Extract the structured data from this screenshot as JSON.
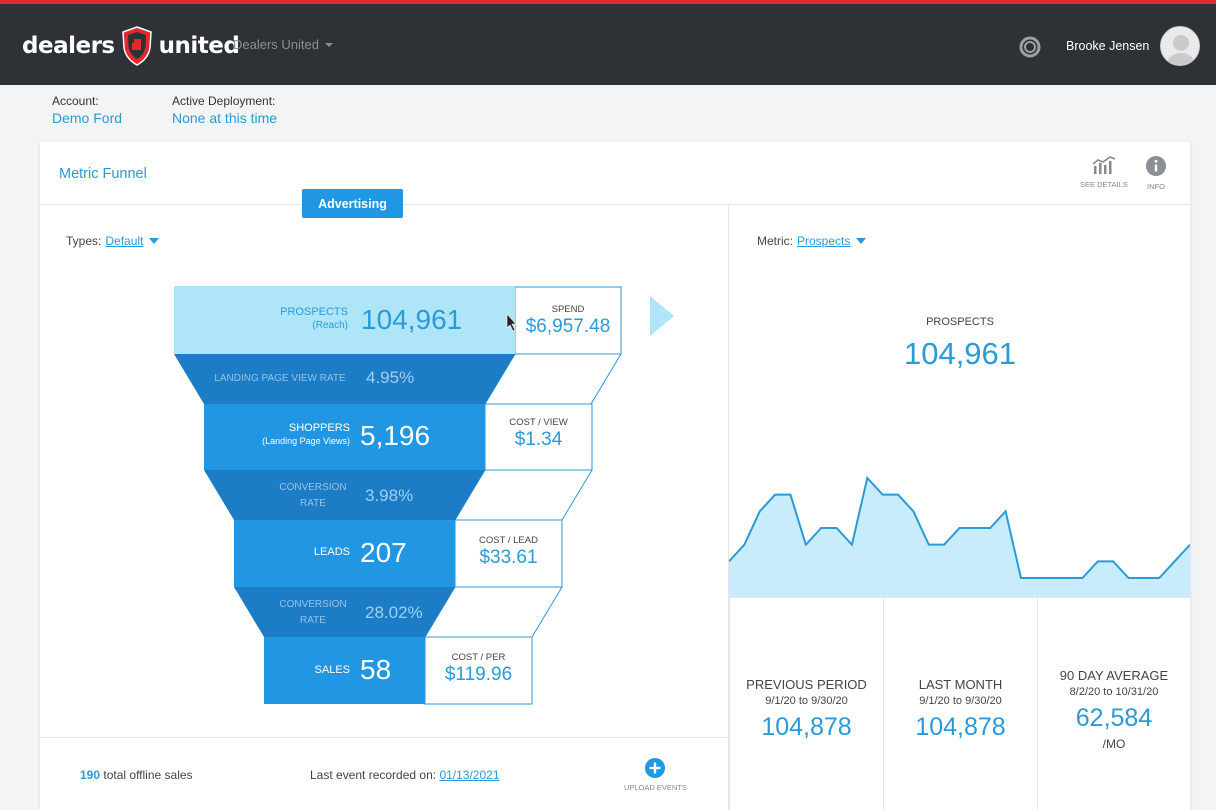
{
  "brand": {
    "word_left": "dealers",
    "word_right": "united",
    "primary_color": "#e02a2f"
  },
  "topbar": {
    "org_select": "Dealers United",
    "user_name": "Brooke Jensen",
    "icons": [
      "settings-icon",
      "avatar"
    ]
  },
  "account": {
    "account_label": "Account:",
    "account_value": "Demo Ford",
    "deployment_label": "Active Deployment:",
    "deployment_value": "None at this time"
  },
  "card": {
    "title": "Metric Funnel",
    "tools": {
      "see_details": "SEE DETAILS",
      "info": "INFO"
    },
    "tab": "Advertising"
  },
  "funnel": {
    "types_label": "Types:",
    "types_value": "Default",
    "stages": [
      {
        "label": "PROSPECTS",
        "sub": "(Reach)",
        "value": "104,961",
        "cost_label": "SPEND",
        "cost_value": "$6,957.48"
      },
      {
        "label": "SHOPPERS",
        "sub": "(Landing Page Views)",
        "value": "5,196",
        "cost_label": "COST / VIEW",
        "cost_value": "$1.34"
      },
      {
        "label": "LEADS",
        "sub": "",
        "value": "207",
        "cost_label": "COST / LEAD",
        "cost_value": "$33.61"
      },
      {
        "label": "SALES",
        "sub": "",
        "value": "58",
        "cost_label": "COST / PER",
        "cost_value": "$119.96"
      }
    ],
    "rates": [
      {
        "label": "LANDING PAGE VIEW RATE",
        "value": "4.95%"
      },
      {
        "label_line1": "CONVERSION",
        "label_line2": "RATE",
        "value": "3.98%"
      },
      {
        "label_line1": "CONVERSION",
        "label_line2": "RATE",
        "value": "28.02%"
      }
    ],
    "colors": {
      "top": "#aee5f9",
      "stage": "#2196e3",
      "rate": "#1d7cc6"
    }
  },
  "footer": {
    "offline_count": "190",
    "offline_text": "total offline sales",
    "last_event_label": "Last event recorded on:",
    "last_event_date": "01/13/2021",
    "upload_label": "UPLOAD EVENTS"
  },
  "metric_panel": {
    "metric_label": "Metric:",
    "metric_value": "Prospects",
    "title": "PROSPECTS",
    "value": "104,961"
  },
  "chart_data": {
    "type": "area",
    "title": "",
    "xlabel": "",
    "ylabel": "",
    "values": [
      1,
      2,
      4,
      5,
      5,
      2,
      3,
      3,
      2,
      6,
      5,
      5,
      4,
      2,
      2,
      3,
      3,
      3,
      4,
      0,
      0,
      0,
      0,
      0,
      1,
      1,
      0,
      0,
      0,
      1,
      2
    ],
    "ylim": [
      0,
      6
    ],
    "grid": false,
    "line_color": "#2a9ad8",
    "fill_color": "#c8ecfb"
  },
  "stats": [
    {
      "label": "PREVIOUS PERIOD",
      "range": "9/1/20 to 9/30/20",
      "value": "104,878",
      "unit": ""
    },
    {
      "label": "LAST MONTH",
      "range": "9/1/20 to 9/30/20",
      "value": "104,878",
      "unit": ""
    },
    {
      "label": "90 DAY AVERAGE",
      "range": "8/2/20 to 10/31/20",
      "value": "62,584",
      "unit": "/MO"
    }
  ]
}
